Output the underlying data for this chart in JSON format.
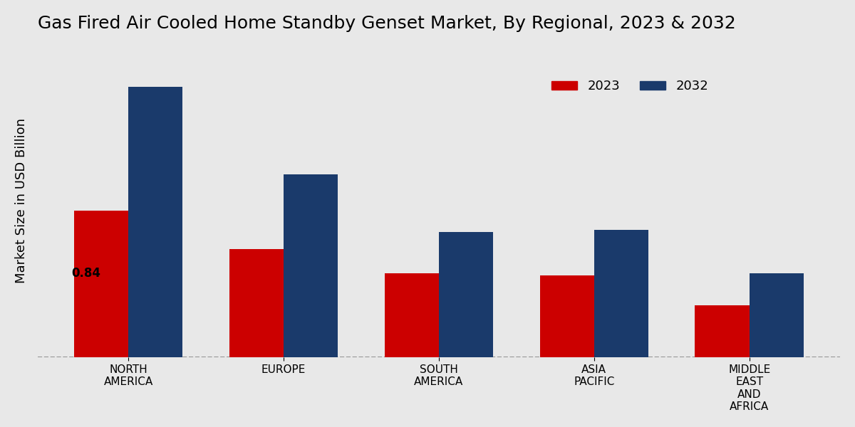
{
  "title": "Gas Fired Air Cooled Home Standby Genset Market, By Regional, 2023 & 2032",
  "ylabel": "Market Size in USD Billion",
  "categories": [
    "NORTH\nAMERICA",
    "EUROPE",
    "SOUTH\nAMERICA",
    "ASIA\nPACIFIC",
    "MIDDLE\nEAST\nAND\nAFRICA"
  ],
  "values_2023": [
    0.84,
    0.62,
    0.48,
    0.47,
    0.3
  ],
  "values_2032": [
    1.55,
    1.05,
    0.72,
    0.73,
    0.48
  ],
  "color_2023": "#cc0000",
  "color_2032": "#1a3a6b",
  "label_2023": "2023",
  "label_2032": "2032",
  "annotation_value": "0.84",
  "annotation_category_idx": 0,
  "background_color": "#e8e8e8",
  "bar_width": 0.35,
  "ylim": [
    0,
    1.8
  ],
  "title_fontsize": 18,
  "ylabel_fontsize": 13,
  "tick_fontsize": 11,
  "legend_fontsize": 13
}
